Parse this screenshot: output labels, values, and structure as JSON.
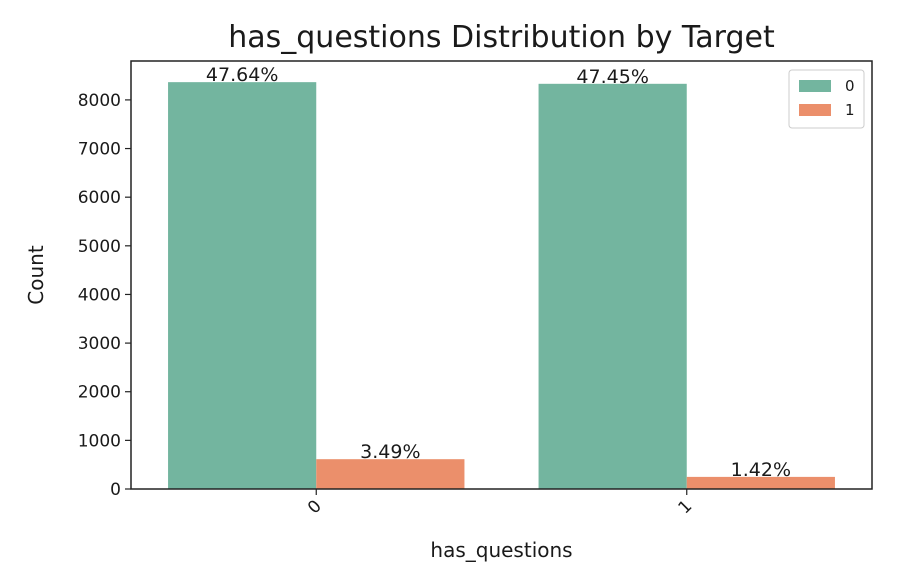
{
  "chart_data": {
    "type": "bar",
    "title": "has_questions Distribution by Target",
    "xlabel": "has_questions",
    "ylabel": "Count",
    "categories": [
      "0",
      "1"
    ],
    "series": [
      {
        "name": "0",
        "color": "#73b59f",
        "values": [
          8365,
          8331
        ],
        "labels": [
          "47.64%",
          "47.45%"
        ]
      },
      {
        "name": "1",
        "color": "#eb8f6b",
        "values": [
          613,
          249
        ],
        "labels": [
          "3.49%",
          "1.42%"
        ]
      }
    ],
    "yticks": [
      0,
      1000,
      2000,
      3000,
      4000,
      5000,
      6000,
      7000,
      8000
    ],
    "ylim": [
      0,
      8800
    ],
    "grid": false,
    "legend_position": "top-right",
    "xtick_rotation": 45
  }
}
